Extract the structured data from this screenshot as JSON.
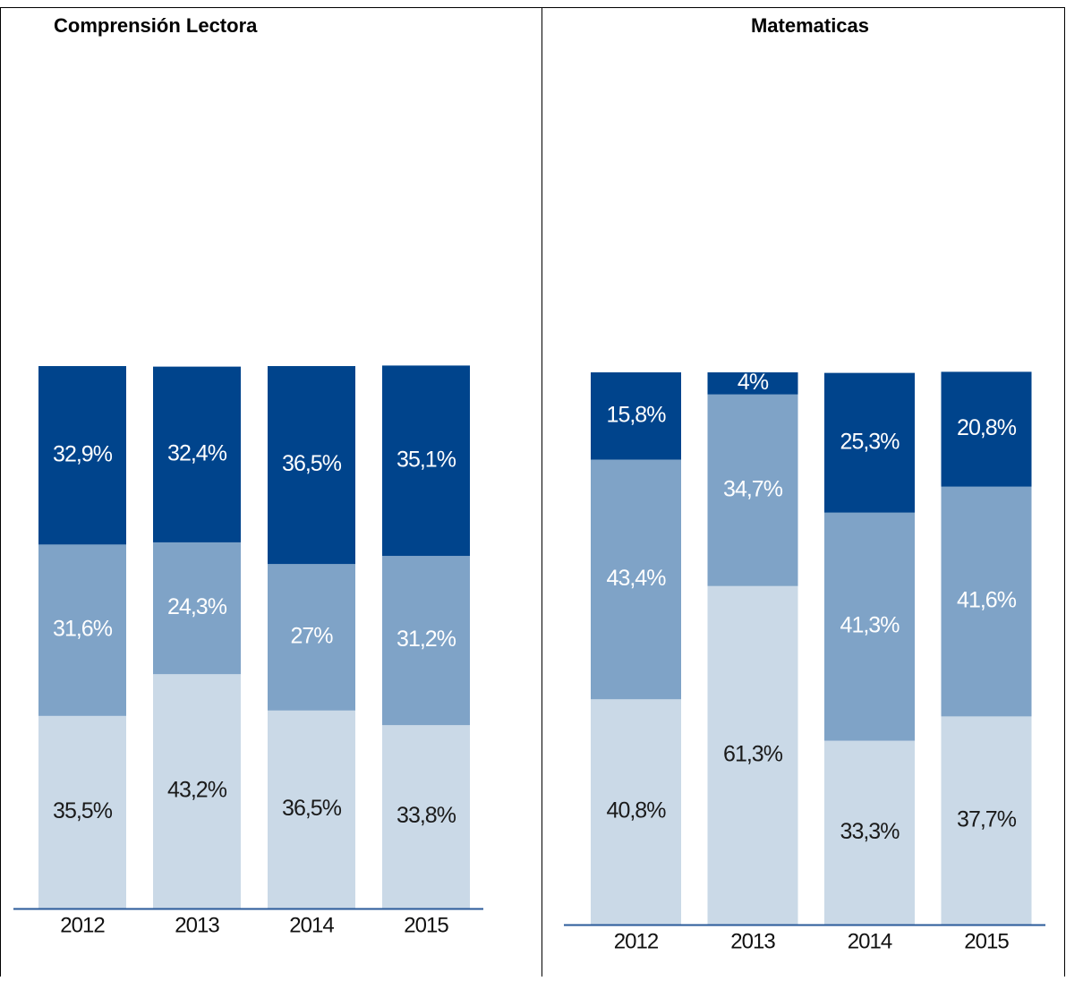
{
  "chart_data": [
    {
      "type": "stacked_bar",
      "title": "Comprensión Lectora",
      "categories": [
        "2012",
        "2013",
        "2014",
        "2015"
      ],
      "ylim": [
        0,
        100
      ],
      "series": [
        {
          "color": "#cad9e7",
          "label_color": "#1a1a1a",
          "values": [
            35.5,
            43.2,
            36.5,
            33.8
          ],
          "value_labels": [
            "35,5%",
            "43,2%",
            "36,5%",
            "33,8%"
          ]
        },
        {
          "color": "#7fa3c7",
          "label_color": "#ffffff",
          "values": [
            31.6,
            24.3,
            27,
            31.2
          ],
          "value_labels": [
            "31,6%",
            "24,3%",
            "27%",
            "31,2%"
          ]
        },
        {
          "color": "#00448c",
          "label_color": "#ffffff",
          "values": [
            32.9,
            32.4,
            36.5,
            35.1
          ],
          "value_labels": [
            "32,9%",
            "32,4%",
            "36,5%",
            "35,1%"
          ]
        }
      ]
    },
    {
      "type": "stacked_bar",
      "title": "Matematicas",
      "categories": [
        "2012",
        "2013",
        "2014",
        "2015"
      ],
      "ylim": [
        0,
        100
      ],
      "series": [
        {
          "color": "#cad9e7",
          "label_color": "#1a1a1a",
          "values": [
            40.8,
            61.3,
            33.3,
            37.7
          ],
          "value_labels": [
            "40,8%",
            "61,3%",
            "33,3%",
            "37,7%"
          ]
        },
        {
          "color": "#7fa3c7",
          "label_color": "#ffffff",
          "values": [
            43.4,
            34.7,
            41.3,
            41.6
          ],
          "value_labels": [
            "43,4%",
            "34,7%",
            "41,3%",
            "41,6%"
          ]
        },
        {
          "color": "#00448c",
          "label_color": "#ffffff",
          "values": [
            15.8,
            4,
            25.3,
            20.8
          ],
          "value_labels": [
            "15,8%",
            "4%",
            "25,3%",
            "20,8%"
          ]
        }
      ]
    }
  ]
}
